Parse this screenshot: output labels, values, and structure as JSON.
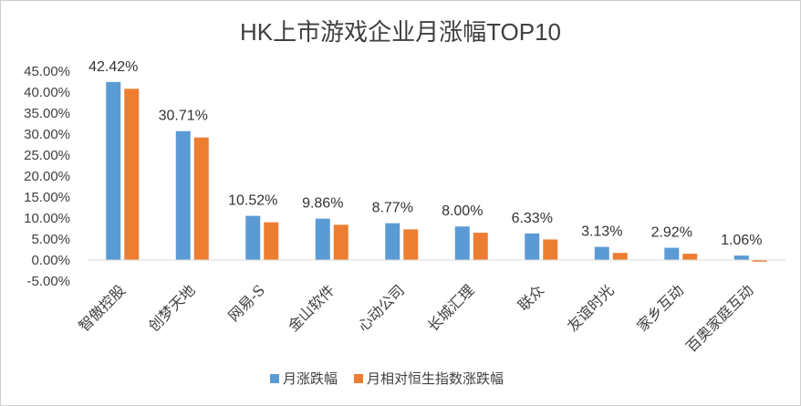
{
  "chart_data": {
    "type": "bar",
    "title": "HK上市游戏企业月涨幅TOP10",
    "categories": [
      "智傲控股",
      "创梦天地",
      "网易-S",
      "金山软件",
      "心动公司",
      "长城汇理",
      "联众",
      "友谊时光",
      "家乡互动",
      "百奥家庭互动"
    ],
    "series": [
      {
        "name": "月涨跌幅",
        "color": "#5B9BD5",
        "values": [
          42.42,
          30.71,
          10.52,
          9.86,
          8.77,
          8.0,
          6.33,
          3.13,
          2.92,
          1.06
        ],
        "data_labels": [
          "42.42%",
          "30.71%",
          "10.52%",
          "9.86%",
          "8.77%",
          "8.00%",
          "6.33%",
          "3.13%",
          "2.92%",
          "1.06%"
        ]
      },
      {
        "name": "月相对恒生指数涨跌幅",
        "color": "#ED7D31",
        "values": [
          40.8,
          29.2,
          9.0,
          8.4,
          7.3,
          6.5,
          4.9,
          1.7,
          1.5,
          -0.4
        ]
      }
    ],
    "ylim": [
      -5,
      45
    ],
    "yticks": [
      45,
      40,
      35,
      30,
      25,
      20,
      15,
      10,
      5,
      0,
      -5
    ],
    "ytick_labels": [
      "45.00%",
      "40.00%",
      "35.00%",
      "30.00%",
      "25.00%",
      "20.00%",
      "15.00%",
      "10.00%",
      "5.00%",
      "0.00%",
      "-5.00%"
    ],
    "grid": false,
    "legend_position": "bottom"
  }
}
